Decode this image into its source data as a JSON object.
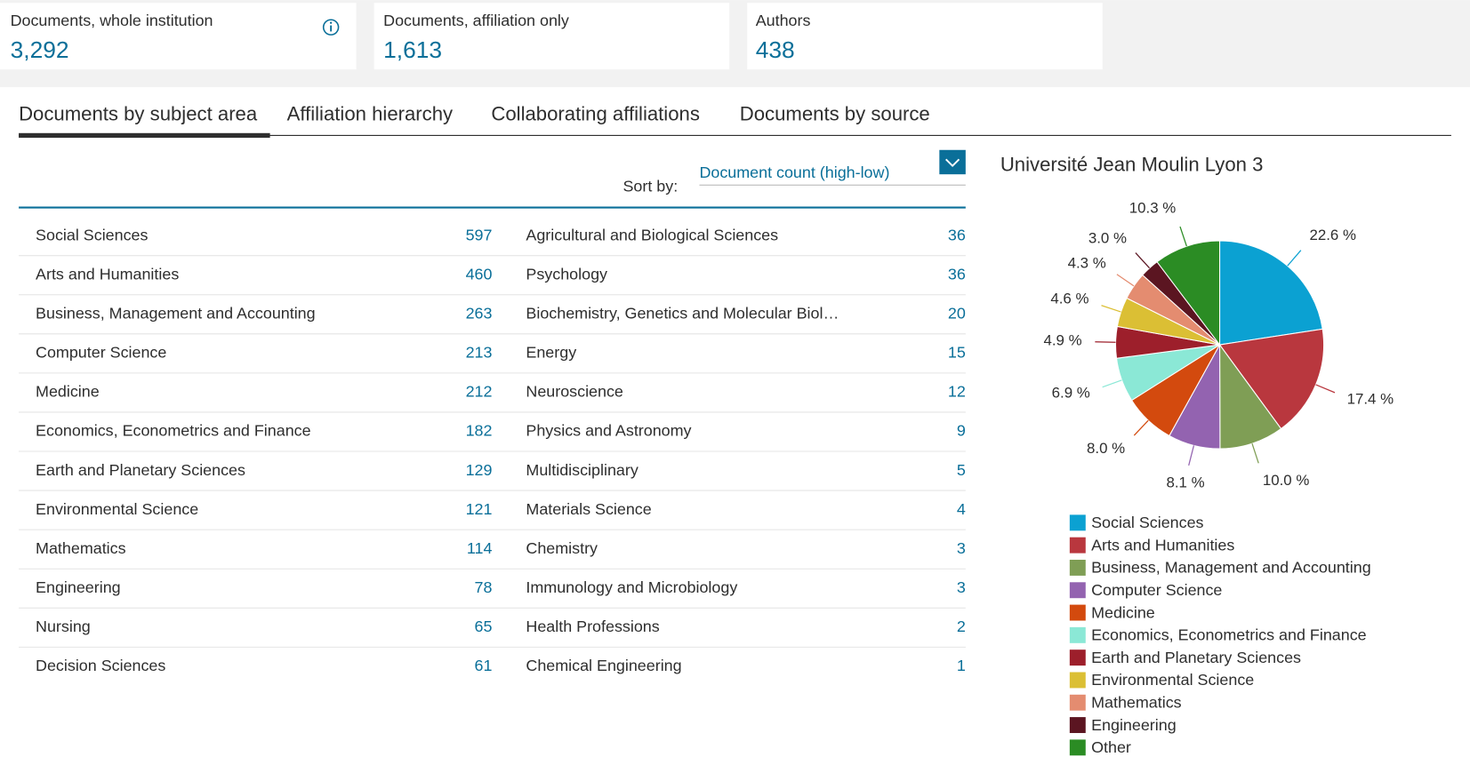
{
  "metrics": [
    {
      "label": "Documents, whole institution",
      "value": "3,292"
    },
    {
      "label": "Documents, affiliation only",
      "value": "1,613"
    },
    {
      "label": "Authors",
      "value": "438"
    }
  ],
  "tabs": [
    "Documents by subject area",
    "Affiliation hierarchy",
    "Collaborating affiliations",
    "Documents by source"
  ],
  "sort_label": "Sort by:",
  "sort_value": "Document count (high-low)",
  "subjects": [
    {
      "name": "Social Sciences",
      "count": 597
    },
    {
      "name": "Arts and Humanities",
      "count": 460
    },
    {
      "name": "Business, Management and Accounting",
      "count": 263
    },
    {
      "name": "Computer Science",
      "count": 213
    },
    {
      "name": "Medicine",
      "count": 212
    },
    {
      "name": "Economics, Econometrics and Finance",
      "count": 182
    },
    {
      "name": "Earth and Planetary Sciences",
      "count": 129
    },
    {
      "name": "Environmental Science",
      "count": 121
    },
    {
      "name": "Mathematics",
      "count": 114
    },
    {
      "name": "Engineering",
      "count": 78
    },
    {
      "name": "Nursing",
      "count": 65
    },
    {
      "name": "Decision Sciences",
      "count": 61
    },
    {
      "name": "Agricultural and Biological Sciences",
      "count": 36
    },
    {
      "name": "Psychology",
      "count": 36
    },
    {
      "name": "Biochemistry, Genetics and Molecular Biol…",
      "count": 20
    },
    {
      "name": "Energy",
      "count": 15
    },
    {
      "name": "Neuroscience",
      "count": 12
    },
    {
      "name": "Physics and Astronomy",
      "count": 9
    },
    {
      "name": "Multidisciplinary",
      "count": 5
    },
    {
      "name": "Materials Science",
      "count": 4
    },
    {
      "name": "Chemistry",
      "count": 3
    },
    {
      "name": "Immunology and Microbiology",
      "count": 3
    },
    {
      "name": "Health Professions",
      "count": 2
    },
    {
      "name": "Chemical Engineering",
      "count": 1
    }
  ],
  "chart_data": {
    "type": "pie",
    "title": "Université Jean Moulin Lyon 3",
    "categories": [
      "Social Sciences",
      "Arts and Humanities",
      "Business, Management and Accounting",
      "Computer Science",
      "Medicine",
      "Economics, Econometrics and Finance",
      "Earth and Planetary Sciences",
      "Environmental Science",
      "Mathematics",
      "Engineering",
      "Other"
    ],
    "values": [
      22.6,
      17.4,
      10.0,
      8.1,
      8.0,
      6.9,
      4.9,
      4.6,
      4.3,
      3.0,
      10.3
    ],
    "value_labels": [
      "22.6 %",
      "17.4 %",
      "10.0 %",
      "8.1 %",
      "8.0 %",
      "6.9 %",
      "4.9 %",
      "4.6 %",
      "4.3 %",
      "3.0 %",
      "10.3 %"
    ],
    "colors": [
      "#0ba1d2",
      "#b9373e",
      "#7f9e55",
      "#9363b0",
      "#d34a0e",
      "#8be8d6",
      "#9d1f2b",
      "#dbbf34",
      "#e48c70",
      "#5b1521",
      "#2b8c24"
    ]
  }
}
